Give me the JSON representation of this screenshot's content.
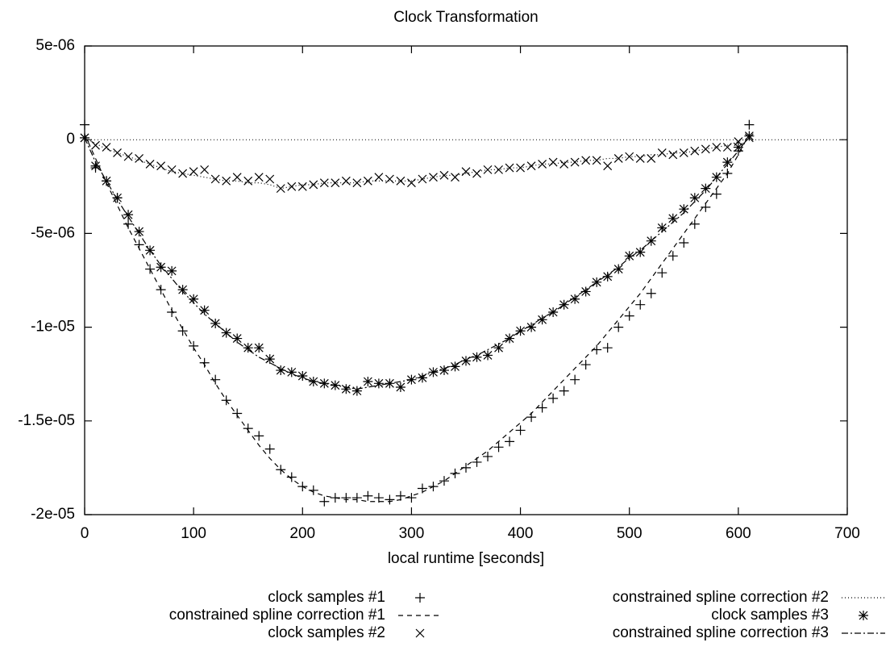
{
  "chart_data": {
    "type": "scatter-lines",
    "title": "Clock Transformation",
    "x_label": "local runtime [seconds]",
    "xlim": [
      0,
      700
    ],
    "xticks": [
      0,
      100,
      200,
      300,
      400,
      500,
      600,
      700
    ],
    "ylim": [
      -2e-05,
      5e-06
    ],
    "yticks": [
      {
        "value": 5e-06,
        "label": "5e-06"
      },
      0,
      {
        "value": -5e-06,
        "label": "-5e-06"
      },
      {
        "value": -1e-05,
        "label": "-1e-05"
      },
      {
        "value": -1.5e-05,
        "label": "-1.5e-05"
      },
      {
        "value": -2e-05,
        "label": "-2e-05"
      }
    ],
    "zero_axis": true,
    "x": [
      0,
      10,
      20,
      30,
      40,
      50,
      60,
      70,
      80,
      90,
      100,
      110,
      120,
      130,
      140,
      150,
      160,
      170,
      180,
      190,
      200,
      210,
      220,
      230,
      240,
      250,
      260,
      270,
      280,
      290,
      300,
      310,
      320,
      330,
      340,
      350,
      360,
      370,
      380,
      390,
      400,
      410,
      420,
      430,
      440,
      450,
      460,
      470,
      480,
      490,
      500,
      510,
      520,
      530,
      540,
      550,
      560,
      570,
      580,
      590,
      600,
      610
    ],
    "series": [
      {
        "name": "clock samples #1",
        "color": "#000000",
        "style": "points",
        "marker": "plus",
        "values": [
          8e-07,
          -1.5e-06,
          -2.2e-06,
          -3.1e-06,
          -4.5e-06,
          -5.6e-06,
          -6.9e-06,
          -8e-06,
          -9.2e-06,
          -1.02e-05,
          -1.1e-05,
          -1.19e-05,
          -1.28e-05,
          -1.39e-05,
          -1.46e-05,
          -1.54e-05,
          -1.58e-05,
          -1.65e-05,
          -1.76e-05,
          -1.8e-05,
          -1.85e-05,
          -1.87e-05,
          -1.93e-05,
          -1.91e-05,
          -1.91e-05,
          -1.91e-05,
          -1.9e-05,
          -1.91e-05,
          -1.92e-05,
          -1.9e-05,
          -1.91e-05,
          -1.86e-05,
          -1.85e-05,
          -1.82e-05,
          -1.78e-05,
          -1.75e-05,
          -1.72e-05,
          -1.69e-05,
          -1.64e-05,
          -1.61e-05,
          -1.55e-05,
          -1.48e-05,
          -1.43e-05,
          -1.38e-05,
          -1.34e-05,
          -1.28e-05,
          -1.2e-05,
          -1.12e-05,
          -1.11e-05,
          -1e-05,
          -9.4e-06,
          -8.8e-06,
          -8.2e-06,
          -7.1e-06,
          -6.2e-06,
          -5.5e-06,
          -4.5e-06,
          -3.6e-06,
          -2.9e-06,
          -1.8e-06,
          -6e-07,
          8e-07
        ]
      },
      {
        "name": "constrained spline correction #1",
        "color": "#000000",
        "style": "line",
        "dash": "6,5",
        "values": [
          3e-07,
          -1e-06,
          -2.3e-06,
          -3.5e-06,
          -4.7e-06,
          -5.8e-06,
          -6.9e-06,
          -8e-06,
          -9.1e-06,
          -1.01e-05,
          -1.11e-05,
          -1.2e-05,
          -1.3e-05,
          -1.39e-05,
          -1.47e-05,
          -1.55e-05,
          -1.63e-05,
          -1.7e-05,
          -1.76e-05,
          -1.81e-05,
          -1.85e-05,
          -1.88e-05,
          -1.9e-05,
          -1.91e-05,
          -1.92e-05,
          -1.92e-05,
          -1.93e-05,
          -1.93e-05,
          -1.93e-05,
          -1.92e-05,
          -1.9e-05,
          -1.88e-05,
          -1.85e-05,
          -1.82e-05,
          -1.78e-05,
          -1.74e-05,
          -1.7e-05,
          -1.66e-05,
          -1.61e-05,
          -1.56e-05,
          -1.51e-05,
          -1.46e-05,
          -1.4e-05,
          -1.34e-05,
          -1.28e-05,
          -1.22e-05,
          -1.16e-05,
          -1.1e-05,
          -1.03e-05,
          -9.6e-06,
          -8.9e-06,
          -8.2e-06,
          -7.4e-06,
          -6.6e-06,
          -5.8e-06,
          -5e-06,
          -4.2e-06,
          -3.4e-06,
          -2.6e-06,
          -1.8e-06,
          -8e-07,
          3e-07
        ]
      },
      {
        "name": "clock samples #2",
        "color": "#000000",
        "style": "points",
        "marker": "cross",
        "values": [
          1e-07,
          -3e-07,
          -4e-07,
          -7e-07,
          -9e-07,
          -1e-06,
          -1.3e-06,
          -1.4e-06,
          -1.6e-06,
          -1.8e-06,
          -1.7e-06,
          -1.6e-06,
          -2.1e-06,
          -2.2e-06,
          -2e-06,
          -2.2e-06,
          -2e-06,
          -2.1e-06,
          -2.6e-06,
          -2.5e-06,
          -2.5e-06,
          -2.4e-06,
          -2.3e-06,
          -2.3e-06,
          -2.2e-06,
          -2.3e-06,
          -2.2e-06,
          -2e-06,
          -2.1e-06,
          -2.2e-06,
          -2.3e-06,
          -2.1e-06,
          -2e-06,
          -1.9e-06,
          -2e-06,
          -1.7e-06,
          -1.8e-06,
          -1.6e-06,
          -1.6e-06,
          -1.5e-06,
          -1.5e-06,
          -1.4e-06,
          -1.3e-06,
          -1.2e-06,
          -1.3e-06,
          -1.2e-06,
          -1.1e-06,
          -1.1e-06,
          -1.4e-06,
          -1e-06,
          -9e-07,
          -1e-06,
          -1e-06,
          -7e-07,
          -8e-07,
          -7e-07,
          -6e-07,
          -5e-07,
          -4e-07,
          -4e-07,
          -1e-07,
          1e-07
        ]
      },
      {
        "name": "constrained spline correction #2",
        "color": "#000000",
        "style": "line",
        "dash": "1,3",
        "values": [
          1e-07,
          -2e-07,
          -5e-07,
          -7e-07,
          -9e-07,
          -1.1e-06,
          -1.3e-06,
          -1.5e-06,
          -1.7e-06,
          -1.8e-06,
          -1.9e-06,
          -2e-06,
          -2.1e-06,
          -2.2e-06,
          -2.2e-06,
          -2.3e-06,
          -2.3e-06,
          -2.4e-06,
          -2.6e-06,
          -2.5e-06,
          -2.4e-06,
          -2.4e-06,
          -2.3e-06,
          -2.3e-06,
          -2.3e-06,
          -2.3e-06,
          -2.2e-06,
          -2.2e-06,
          -2.2e-06,
          -2.2e-06,
          -2.2e-06,
          -2.1e-06,
          -2e-06,
          -1.9e-06,
          -1.9e-06,
          -1.8e-06,
          -1.7e-06,
          -1.6e-06,
          -1.6e-06,
          -1.5e-06,
          -1.5e-06,
          -1.4e-06,
          -1.3e-06,
          -1.3e-06,
          -1.2e-06,
          -1.2e-06,
          -1.1e-06,
          -1.1e-06,
          -1e-06,
          -1e-06,
          -9e-07,
          -9e-07,
          -8e-07,
          -8e-07,
          -7e-07,
          -7e-07,
          -6e-07,
          -5e-07,
          -4e-07,
          -3e-07,
          -1e-07,
          1e-07
        ]
      },
      {
        "name": "clock samples #3",
        "color": "#000000",
        "style": "points",
        "marker": "star",
        "values": [
          1e-07,
          -1.4e-06,
          -2.2e-06,
          -3.1e-06,
          -4e-06,
          -4.9e-06,
          -5.9e-06,
          -6.8e-06,
          -7e-06,
          -8e-06,
          -8.5e-06,
          -9.1e-06,
          -9.8e-06,
          -1.03e-05,
          -1.06e-05,
          -1.11e-05,
          -1.11e-05,
          -1.17e-05,
          -1.23e-05,
          -1.24e-05,
          -1.26e-05,
          -1.29e-05,
          -1.3e-05,
          -1.31e-05,
          -1.33e-05,
          -1.34e-05,
          -1.29e-05,
          -1.3e-05,
          -1.3e-05,
          -1.32e-05,
          -1.28e-05,
          -1.27e-05,
          -1.24e-05,
          -1.23e-05,
          -1.21e-05,
          -1.18e-05,
          -1.16e-05,
          -1.15e-05,
          -1.11e-05,
          -1.06e-05,
          -1.02e-05,
          -1e-05,
          -9.6e-06,
          -9.2e-06,
          -8.8e-06,
          -8.5e-06,
          -8.1e-06,
          -7.6e-06,
          -7.3e-06,
          -6.9e-06,
          -6.2e-06,
          -6e-06,
          -5.4e-06,
          -4.7e-06,
          -4.2e-06,
          -3.7e-06,
          -3.1e-06,
          -2.6e-06,
          -2e-06,
          -1.2e-06,
          -4e-07,
          2e-07
        ]
      },
      {
        "name": "constrained spline correction #3",
        "color": "#000000",
        "style": "line",
        "dash": "8,3,2,3",
        "values": [
          1e-07,
          -1.2e-06,
          -2.2e-06,
          -3.2e-06,
          -4.1e-06,
          -5e-06,
          -5.9e-06,
          -6.7e-06,
          -7.4e-06,
          -8.1e-06,
          -8.7e-06,
          -9.3e-06,
          -9.8e-06,
          -1.03e-05,
          -1.08e-05,
          -1.12e-05,
          -1.16e-05,
          -1.19e-05,
          -1.22e-05,
          -1.25e-05,
          -1.27e-05,
          -1.29e-05,
          -1.3e-05,
          -1.31e-05,
          -1.32e-05,
          -1.33e-05,
          -1.32e-05,
          -1.31e-05,
          -1.3e-05,
          -1.29e-05,
          -1.28e-05,
          -1.26e-05,
          -1.24e-05,
          -1.22e-05,
          -1.2e-05,
          -1.17e-05,
          -1.15e-05,
          -1.12e-05,
          -1.09e-05,
          -1.06e-05,
          -1.02e-05,
          -9.9e-06,
          -9.5e-06,
          -9.2e-06,
          -8.8e-06,
          -8.4e-06,
          -8e-06,
          -7.6e-06,
          -7.2e-06,
          -6.8e-06,
          -6.3e-06,
          -5.9e-06,
          -5.4e-06,
          -4.9e-06,
          -4.4e-06,
          -3.9e-06,
          -3.3e-06,
          -2.7e-06,
          -2e-06,
          -1.3e-06,
          -6e-07,
          2e-07
        ]
      }
    ]
  }
}
